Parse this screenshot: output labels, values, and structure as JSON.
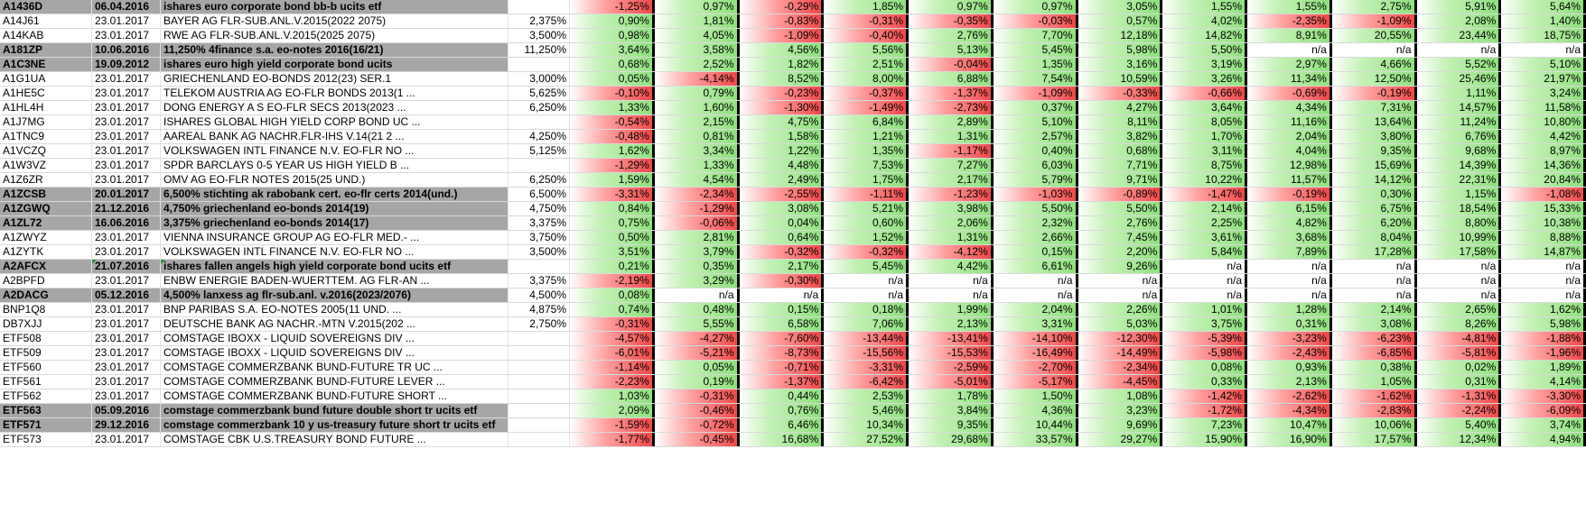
{
  "columns_count": 12,
  "rows": [
    {
      "id": "A1436D",
      "date": "06.04.2016",
      "name": "ishares euro corporate bond bb-b ucits etf",
      "rate": "",
      "highlight": true,
      "vals": [
        "-1,25%",
        "0,97%",
        "-0,29%",
        "1,85%",
        "0,97%",
        "0,97%",
        "3,05%",
        "1,55%",
        "1,55%",
        "2,75%",
        "5,91%",
        "5,64%"
      ]
    },
    {
      "id": "A14J61",
      "date": "23.01.2017",
      "name": "BAYER AG FLR-SUB.ANL.V.2015(2022 2075)",
      "rate": "2,375%",
      "highlight": false,
      "vals": [
        "0,90%",
        "1,81%",
        "-0,83%",
        "-0,31%",
        "-0,35%",
        "-0,03%",
        "0,57%",
        "4,02%",
        "-2,35%",
        "-1,09%",
        "2,08%",
        "1,40%"
      ]
    },
    {
      "id": "A14KAB",
      "date": "23.01.2017",
      "name": "RWE AG FLR-SUB.ANL.V.2015(2025 2075)",
      "rate": "3,500%",
      "highlight": false,
      "vals": [
        "0,98%",
        "4,05%",
        "-1,09%",
        "-0,40%",
        "2,76%",
        "7,70%",
        "12,18%",
        "14,82%",
        "8,91%",
        "20,55%",
        "23,44%",
        "18,75%"
      ]
    },
    {
      "id": "A181ZP",
      "date": "10.06.2016",
      "name": "11,250% 4finance s.a. eo-notes 2016(16/21)",
      "rate": "11,250%",
      "highlight": true,
      "vals": [
        "3,64%",
        "3,58%",
        "4,56%",
        "5,56%",
        "5,13%",
        "5,45%",
        "5,98%",
        "5,50%",
        "n/a",
        "n/a",
        "n/a",
        "n/a"
      ]
    },
    {
      "id": "A1C3NE",
      "date": "19.09.2012",
      "name": "ishares euro high yield corporate bond ucits",
      "rate": "",
      "highlight": true,
      "vals": [
        "0,68%",
        "2,52%",
        "1,82%",
        "2,51%",
        "-0,04%",
        "1,35%",
        "3,16%",
        "3,19%",
        "2,97%",
        "4,66%",
        "5,52%",
        "5,10%"
      ]
    },
    {
      "id": "A1G1UA",
      "date": "23.01.2017",
      "name": "GRIECHENLAND EO-BONDS 2012(23) SER.1",
      "rate": "3,000%",
      "highlight": false,
      "vals": [
        "0,05%",
        "-4,14%",
        "8,52%",
        "8,00%",
        "6,88%",
        "7,54%",
        "10,59%",
        "3,26%",
        "11,34%",
        "12,50%",
        "25,46%",
        "21,97%"
      ]
    },
    {
      "id": "A1HE5C",
      "date": "23.01.2017",
      "name": "TELEKOM AUSTRIA AG EO-FLR BONDS 2013(1 ...",
      "rate": "5,625%",
      "highlight": false,
      "vals": [
        "-0,10%",
        "0,79%",
        "-0,23%",
        "-0,37%",
        "-1,37%",
        "-1,09%",
        "-0,33%",
        "-0,66%",
        "-0,69%",
        "-0,19%",
        "1,11%",
        "3,24%"
      ]
    },
    {
      "id": "A1HL4H",
      "date": "23.01.2017",
      "name": "DONG ENERGY A S EO-FLR SECS 2013(2023 ...",
      "rate": "6,250%",
      "highlight": false,
      "vals": [
        "1,33%",
        "1,60%",
        "-1,30%",
        "-1,49%",
        "-2,73%",
        "0,37%",
        "4,27%",
        "3,64%",
        "4,34%",
        "7,31%",
        "14,57%",
        "11,58%"
      ]
    },
    {
      "id": "A1J7MG",
      "date": "23.01.2017",
      "name": "ISHARES GLOBAL HIGH YIELD CORP BOND UC ...",
      "rate": "",
      "highlight": false,
      "vals": [
        "-0,54%",
        "2,15%",
        "4,75%",
        "6,84%",
        "2,89%",
        "5,10%",
        "8,11%",
        "8,05%",
        "11,16%",
        "13,64%",
        "11,24%",
        "10,80%"
      ]
    },
    {
      "id": "A1TNC9",
      "date": "23.01.2017",
      "name": "AAREAL BANK AG NACHR.FLR-IHS V.14(21 2 ...",
      "rate": "4,250%",
      "highlight": false,
      "vals": [
        "-0,48%",
        "0,81%",
        "1,58%",
        "1,21%",
        "1,31%",
        "2,57%",
        "3,82%",
        "1,70%",
        "2,04%",
        "3,80%",
        "6,76%",
        "4,42%"
      ]
    },
    {
      "id": "A1VCZQ",
      "date": "23.01.2017",
      "name": "VOLKSWAGEN INTL FINANCE N.V. EO-FLR NO ...",
      "rate": "5,125%",
      "highlight": false,
      "vals": [
        "1,62%",
        "3,34%",
        "1,22%",
        "1,35%",
        "-1,17%",
        "0,40%",
        "0,68%",
        "3,11%",
        "4,04%",
        "9,35%",
        "9,68%",
        "8,97%"
      ]
    },
    {
      "id": "A1W3VZ",
      "date": "23.01.2017",
      "name": "SPDR BARCLAYS 0-5 YEAR US HIGH YIELD B ...",
      "rate": "",
      "highlight": false,
      "vals": [
        "-1,29%",
        "1,33%",
        "4,48%",
        "7,53%",
        "7,27%",
        "6,03%",
        "7,71%",
        "8,75%",
        "12,98%",
        "15,69%",
        "14,39%",
        "14,36%"
      ]
    },
    {
      "id": "A1Z6ZR",
      "date": "23.01.2017",
      "name": "OMV AG EO-FLR NOTES 2015(25 UND.)",
      "rate": "6,250%",
      "highlight": false,
      "vals": [
        "1,59%",
        "4,54%",
        "2,49%",
        "1,75%",
        "2,17%",
        "5,79%",
        "9,71%",
        "10,22%",
        "11,57%",
        "14,12%",
        "22,31%",
        "20,84%"
      ]
    },
    {
      "id": "A1ZCSB",
      "date": "20.01.2017",
      "name": "6,500% stichting ak rabobank cert. eo-flr certs 2014(und.)",
      "rate": "6,500%",
      "highlight": true,
      "vals": [
        "-3,31%",
        "-2,34%",
        "-2,55%",
        "-1,11%",
        "-1,23%",
        "-1,03%",
        "-0,89%",
        "-1,47%",
        "-0,19%",
        "0,30%",
        "1,15%",
        "-1,08%"
      ]
    },
    {
      "id": "A1ZGWQ",
      "date": "21.12.2016",
      "name": "4,750% griechenland eo-bonds 2014(19)",
      "rate": "4,750%",
      "highlight": true,
      "vals": [
        "0,84%",
        "-1,29%",
        "3,08%",
        "5,21%",
        "3,98%",
        "5,50%",
        "5,50%",
        "2,14%",
        "6,15%",
        "6,75%",
        "18,54%",
        "15,33%"
      ]
    },
    {
      "id": "A1ZL72",
      "date": "16.06.2016",
      "name": "3,375% griechenland eo-bonds 2014(17)",
      "rate": "3,375%",
      "highlight": true,
      "vals": [
        "0,75%",
        "-0,06%",
        "0,04%",
        "0,60%",
        "2,06%",
        "2,32%",
        "2,76%",
        "2,25%",
        "4,82%",
        "6,20%",
        "8,80%",
        "10,38%"
      ]
    },
    {
      "id": "A1ZWYZ",
      "date": "23.01.2017",
      "name": "VIENNA INSURANCE GROUP AG EO-FLR MED.- ...",
      "rate": "3,750%",
      "highlight": false,
      "vals": [
        "0,50%",
        "2,81%",
        "0,64%",
        "1,52%",
        "1,31%",
        "2,66%",
        "7,45%",
        "3,61%",
        "3,68%",
        "8,04%",
        "10,99%",
        "8,88%"
      ]
    },
    {
      "id": "A1ZYTK",
      "date": "23.01.2017",
      "name": "VOLKSWAGEN INTL FINANCE N.V. EO-FLR NO ...",
      "rate": "3,500%",
      "highlight": false,
      "vals": [
        "3,51%",
        "3,79%",
        "-0,32%",
        "-0,32%",
        "-4,12%",
        "0,15%",
        "2,20%",
        "5,84%",
        "7,89%",
        "17,28%",
        "17,58%",
        "14,87%"
      ]
    },
    {
      "id": "A2AFCX",
      "date": "21.07.2016",
      "name": "ishares fallen angels high yield corporate bond ucits etf",
      "rate": "",
      "highlight": true,
      "tri": true,
      "vals": [
        "0,21%",
        "0,35%",
        "2,17%",
        "5,45%",
        "4,42%",
        "6,61%",
        "9,26%",
        "n/a",
        "n/a",
        "n/a",
        "n/a",
        "n/a"
      ]
    },
    {
      "id": "A2BPFD",
      "date": "23.01.2017",
      "name": "ENBW ENERGIE BADEN-WUERTTEM. AG FLR-AN ...",
      "rate": "3,375%",
      "highlight": false,
      "vals": [
        "-2,19%",
        "3,29%",
        "-0,30%",
        "n/a",
        "n/a",
        "n/a",
        "n/a",
        "n/a",
        "n/a",
        "n/a",
        "n/a",
        "n/a"
      ]
    },
    {
      "id": "A2DACG",
      "date": "05.12.2016",
      "name": "4,500% lanxess ag flr-sub.anl. v.2016(2023/2076)",
      "rate": "4,500%",
      "highlight": true,
      "vals": [
        "0,08%",
        "n/a",
        "n/a",
        "n/a",
        "n/a",
        "n/a",
        "n/a",
        "n/a",
        "n/a",
        "n/a",
        "n/a",
        "n/a"
      ]
    },
    {
      "id": "BNP1Q8",
      "date": "23.01.2017",
      "name": "BNP PARIBAS S.A. EO-NOTES 2005(11 UND. ...",
      "rate": "4,875%",
      "highlight": false,
      "vals": [
        "0,74%",
        "0,48%",
        "0,15%",
        "0,18%",
        "1,99%",
        "2,04%",
        "2,26%",
        "1,01%",
        "1,28%",
        "2,14%",
        "2,65%",
        "1,62%"
      ]
    },
    {
      "id": "DB7XJJ",
      "date": "23.01.2017",
      "name": "DEUTSCHE BANK AG NACHR.-MTN V.2015(202 ...",
      "rate": "2,750%",
      "highlight": false,
      "vals": [
        "-0,31%",
        "5,55%",
        "6,58%",
        "7,06%",
        "2,13%",
        "3,31%",
        "5,03%",
        "3,75%",
        "0,31%",
        "3,08%",
        "8,26%",
        "5,98%"
      ]
    },
    {
      "id": "ETF508",
      "date": "23.01.2017",
      "name": "COMSTAGE IBOXX - LIQUID SOVEREIGNS DIV ...",
      "rate": "",
      "highlight": false,
      "vals": [
        "-4,57%",
        "-4,27%",
        "-7,60%",
        "-13,44%",
        "-13,41%",
        "-14,10%",
        "-12,30%",
        "-5,39%",
        "-3,23%",
        "-6,23%",
        "-4,81%",
        "-1,88%"
      ]
    },
    {
      "id": "ETF509",
      "date": "23.01.2017",
      "name": "COMSTAGE IBOXX - LIQUID SOVEREIGNS DIV ...",
      "rate": "",
      "highlight": false,
      "vals": [
        "-6,01%",
        "-5,21%",
        "-8,73%",
        "-15,56%",
        "-15,53%",
        "-16,49%",
        "-14,49%",
        "-5,98%",
        "-2,43%",
        "-6,85%",
        "-5,81%",
        "-1,96%"
      ]
    },
    {
      "id": "ETF560",
      "date": "23.01.2017",
      "name": "COMSTAGE COMMERZBANK BUND-FUTURE TR UC ...",
      "rate": "",
      "highlight": false,
      "vals": [
        "-1,14%",
        "0,05%",
        "-0,71%",
        "-3,31%",
        "-2,59%",
        "-2,70%",
        "-2,34%",
        "0,08%",
        "0,93%",
        "0,38%",
        "0,02%",
        "1,89%"
      ]
    },
    {
      "id": "ETF561",
      "date": "23.01.2017",
      "name": "COMSTAGE COMMERZBANK BUND-FUTURE LEVER ...",
      "rate": "",
      "highlight": false,
      "vals": [
        "-2,23%",
        "0,19%",
        "-1,37%",
        "-6,42%",
        "-5,01%",
        "-5,17%",
        "-4,45%",
        "0,33%",
        "2,13%",
        "1,05%",
        "0,31%",
        "4,14%"
      ]
    },
    {
      "id": "ETF562",
      "date": "23.01.2017",
      "name": "COMSTAGE COMMERZBANK BUND-FUTURE SHORT ...",
      "rate": "",
      "highlight": false,
      "vals": [
        "1,03%",
        "-0,31%",
        "0,44%",
        "2,53%",
        "1,78%",
        "1,50%",
        "1,08%",
        "-1,42%",
        "-2,62%",
        "-1,62%",
        "-1,31%",
        "-3,30%"
      ]
    },
    {
      "id": "ETF563",
      "date": "05.09.2016",
      "name": "comstage commerzbank bund future double short tr ucits etf",
      "rate": "",
      "highlight": true,
      "vals": [
        "2,09%",
        "-0,46%",
        "0,76%",
        "5,46%",
        "3,84%",
        "4,36%",
        "3,23%",
        "-1,72%",
        "-4,34%",
        "-2,83%",
        "-2,24%",
        "-6,09%"
      ]
    },
    {
      "id": "ETF571",
      "date": "29.12.2016",
      "name": "comstage commerzbank 10 y us-treasury future short tr ucits etf",
      "rate": "",
      "highlight": true,
      "vals": [
        "-1,59%",
        "-0,72%",
        "6,46%",
        "10,34%",
        "9,35%",
        "10,44%",
        "9,69%",
        "7,23%",
        "10,47%",
        "10,06%",
        "5,40%",
        "3,74%"
      ]
    },
    {
      "id": "ETF573",
      "date": "23.01.2017",
      "name": "COMSTAGE CBK U.S.TREASURY BOND FUTURE ...",
      "rate": "",
      "highlight": false,
      "vals": [
        "-1,77%",
        "-0,45%",
        "16,68%",
        "27,52%",
        "29,68%",
        "33,57%",
        "29,27%",
        "15,90%",
        "16,90%",
        "17,57%",
        "12,34%",
        "4,94%"
      ]
    }
  ]
}
